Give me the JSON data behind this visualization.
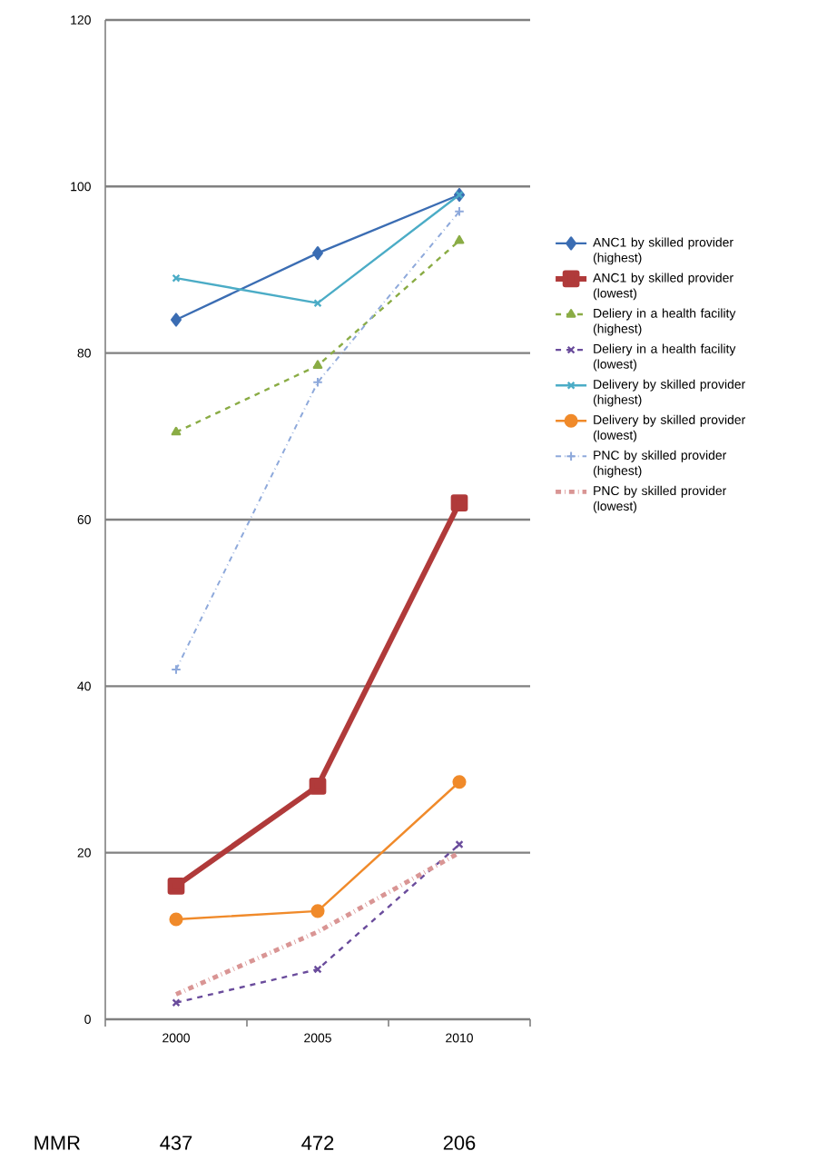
{
  "chart_data": {
    "type": "line",
    "categories": [
      "2000",
      "2005",
      "2010"
    ],
    "ylim": [
      0,
      120
    ],
    "yticks": [
      0,
      20,
      40,
      60,
      80,
      100,
      120
    ],
    "grid": "y",
    "legend": "right",
    "series": [
      {
        "name": "ANC1 by skilled provider (highest)",
        "color": "#3b6db3",
        "marker": "diamond",
        "line_style": "solid",
        "values": [
          84,
          92,
          99
        ]
      },
      {
        "name": "ANC1 by skilled provider (lowest)",
        "color": "#b03a3a",
        "marker": "square",
        "line_style": "solid",
        "values": [
          16,
          28,
          62
        ]
      },
      {
        "name": "Deliery in a health facility (highest)",
        "color": "#8aac45",
        "marker": "triangle",
        "line_style": "dashed",
        "values": [
          70.5,
          78.5,
          93.5
        ]
      },
      {
        "name": "Deliery in a health facility (lowest)",
        "color": "#6a4c9c",
        "marker": "cross",
        "line_style": "dashed",
        "values": [
          2,
          6,
          21
        ]
      },
      {
        "name": "Delivery by skilled provider (highest)",
        "color": "#4bacc6",
        "marker": "cross",
        "line_style": "solid",
        "values": [
          89,
          86,
          99
        ]
      },
      {
        "name": "Delivery by skilled provider (lowest)",
        "color": "#f08a2a",
        "marker": "circle",
        "line_style": "solid",
        "values": [
          12,
          13,
          28.5
        ]
      },
      {
        "name": "PNC by skilled provider (highest)",
        "color": "#8ea9db",
        "marker": "plus",
        "line_style": "dashdot",
        "values": [
          42,
          76.5,
          97
        ]
      },
      {
        "name": "PNC by skilled provider (lowest)",
        "color": "#d99594",
        "marker": "none",
        "line_style": "dashdot",
        "values": [
          3,
          10.5,
          20
        ]
      }
    ],
    "annotations": [
      "MMR",
      "437",
      "472",
      "206"
    ]
  }
}
